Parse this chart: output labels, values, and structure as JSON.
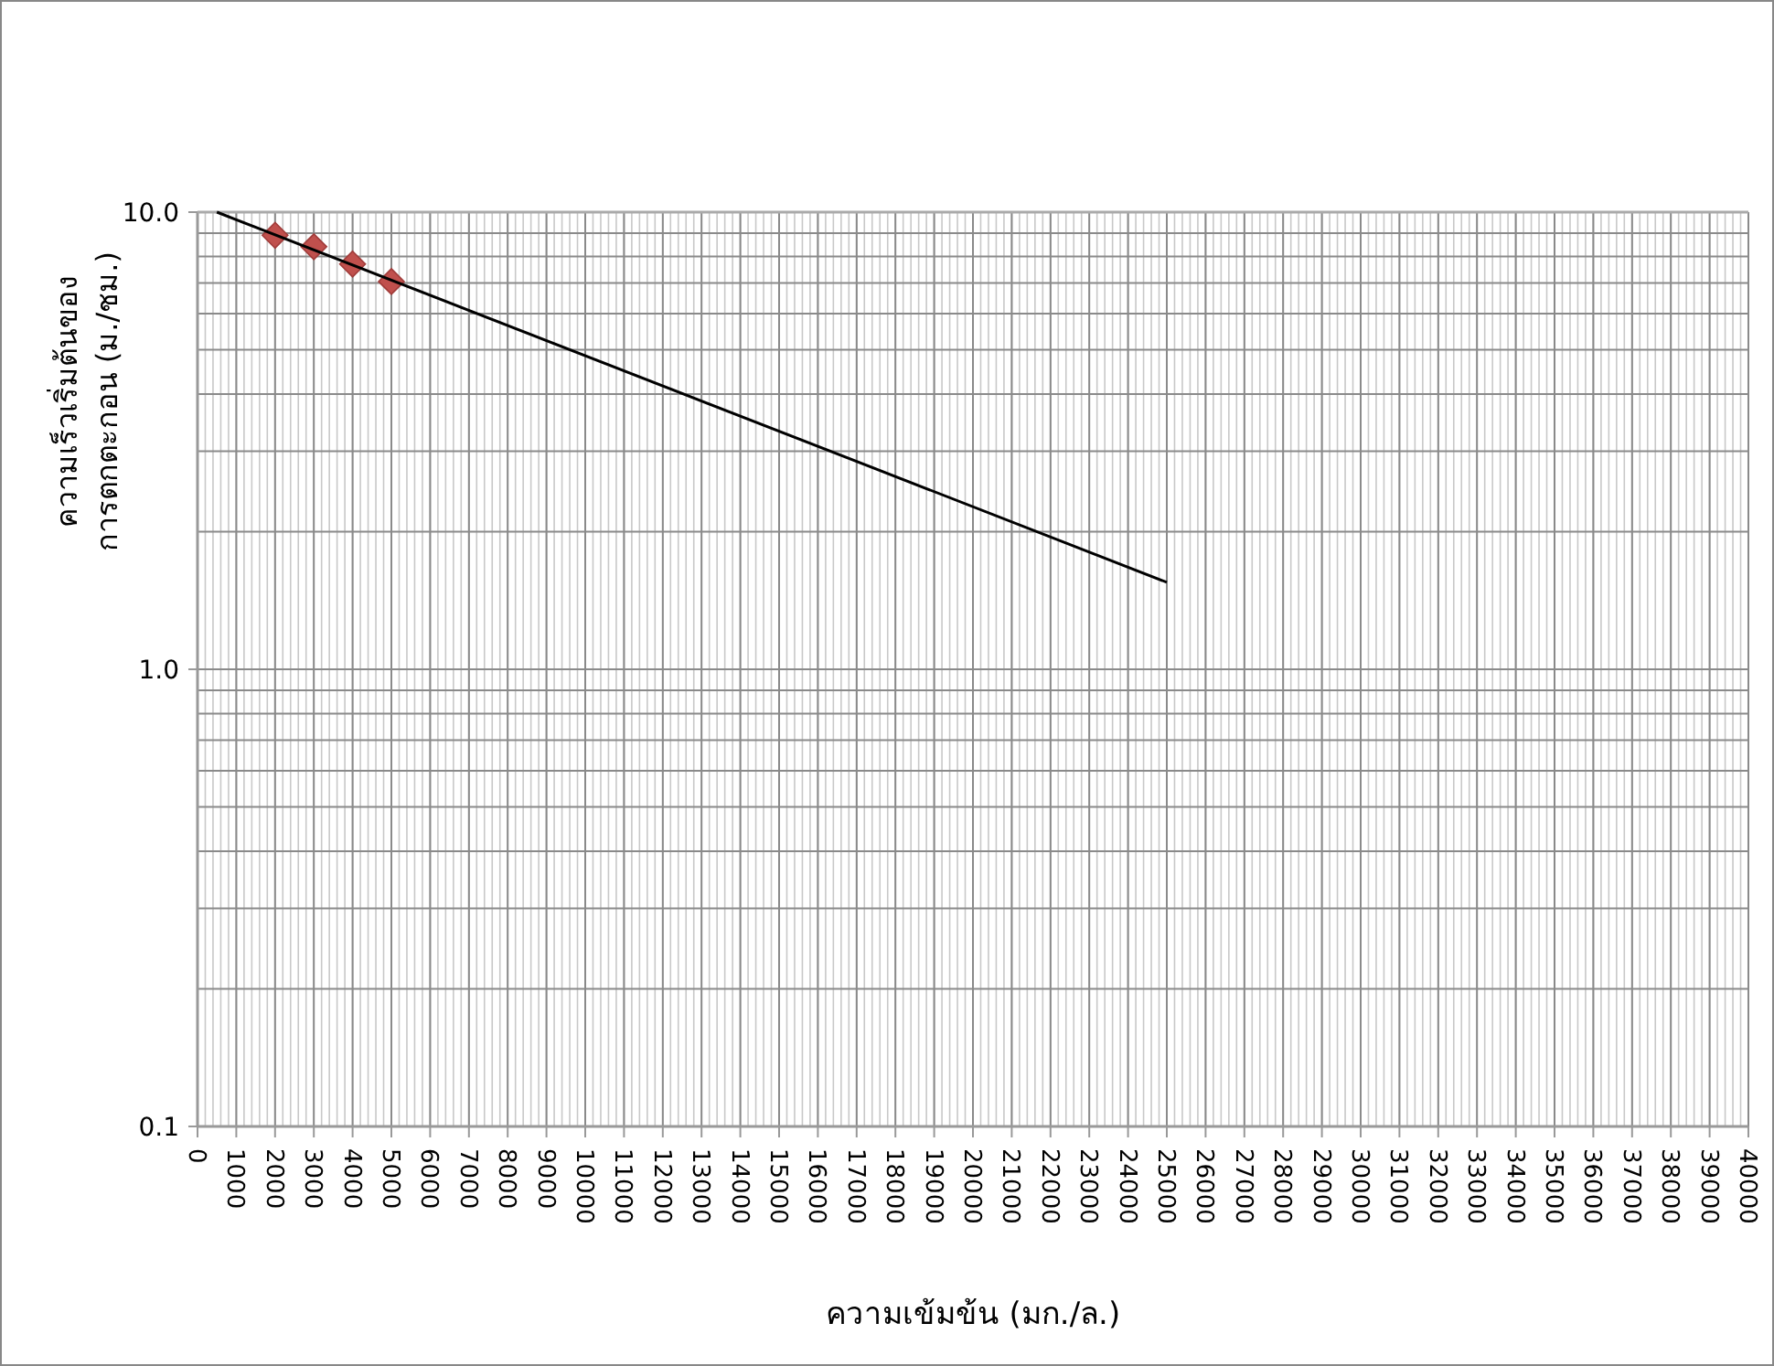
{
  "chart_data": {
    "type": "scatter",
    "xlabel": "ความเข้มข้น (มก./ล.)",
    "ylabel": "ความเร็วเริ่มต้นของ\nการตกตะกอน (ม./ชม.)",
    "log": "y",
    "grid": true,
    "xlim": [
      0,
      40000
    ],
    "xticks": [
      0,
      1000,
      2000,
      3000,
      4000,
      5000,
      6000,
      7000,
      8000,
      9000,
      10000,
      11000,
      12000,
      13000,
      14000,
      15000,
      16000,
      17000,
      18000,
      19000,
      20000,
      21000,
      22000,
      23000,
      24000,
      25000,
      26000,
      27000,
      28000,
      29000,
      30000,
      31000,
      32000,
      33000,
      34000,
      35000,
      36000,
      37000,
      38000,
      39000,
      40000
    ],
    "ylim": [
      0.1,
      10
    ],
    "yticks": [
      0.1,
      {
        "value": 1,
        "label": "1.0"
      },
      {
        "value": 10,
        "label": "10.0"
      }
    ],
    "series": [
      {
        "marker": "diamond",
        "color": "#c0504d",
        "x": [
          2000,
          3000,
          4000,
          5000
        ],
        "values": [
          8.9,
          8.4,
          7.7,
          7.05
        ]
      },
      {
        "type": "line",
        "color": "#000000",
        "x": [
          500,
          25000
        ],
        "values": [
          10,
          1.55
        ]
      }
    ]
  }
}
